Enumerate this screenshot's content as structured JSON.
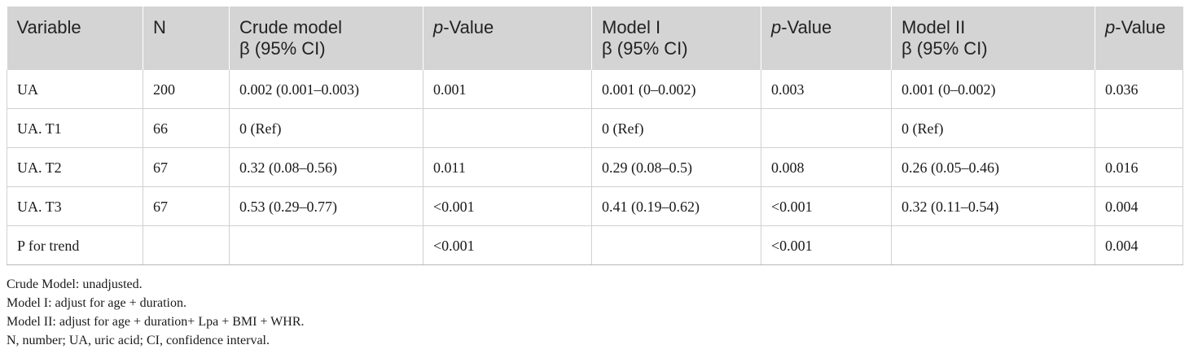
{
  "table": {
    "headers": [
      {
        "line1": "Variable",
        "line2": ""
      },
      {
        "line1": "N",
        "line2": ""
      },
      {
        "line1": "Crude model",
        "line2": "β (95% CI)"
      },
      {
        "italic": "p",
        "rest": "-Value"
      },
      {
        "line1": "Model I",
        "line2": "β (95% CI)"
      },
      {
        "italic": "p",
        "rest": "-Value"
      },
      {
        "line1": "Model II",
        "line2": "β (95% CI)"
      },
      {
        "italic": "p",
        "rest": "-Value"
      }
    ],
    "rows": [
      [
        "UA",
        "200",
        "0.002 (0.001–0.003)",
        "0.001",
        "0.001 (0–0.002)",
        "0.003",
        "0.001 (0–0.002)",
        "0.036"
      ],
      [
        "UA. T1",
        "66",
        "0 (Ref)",
        "",
        "0 (Ref)",
        "",
        "0 (Ref)",
        ""
      ],
      [
        "UA. T2",
        "67",
        "0.32 (0.08–0.56)",
        "0.011",
        "0.29 (0.08–0.5)",
        "0.008",
        "0.26 (0.05–0.46)",
        "0.016"
      ],
      [
        "UA. T3",
        "67",
        "0.53 (0.29–0.77)",
        "<0.001",
        "0.41 (0.19–0.62)",
        "<0.001",
        "0.32 (0.11–0.54)",
        "0.004"
      ],
      [
        "P for trend",
        "",
        "",
        "<0.001",
        "",
        "<0.001",
        "",
        "0.004"
      ]
    ]
  },
  "notes": [
    "Crude Model: unadjusted.",
    "Model I: adjust for age + duration.",
    "Model II: adjust for age + duration+ Lpa + BMI + WHR.",
    "N, number; UA, uric acid; CI, confidence interval."
  ]
}
